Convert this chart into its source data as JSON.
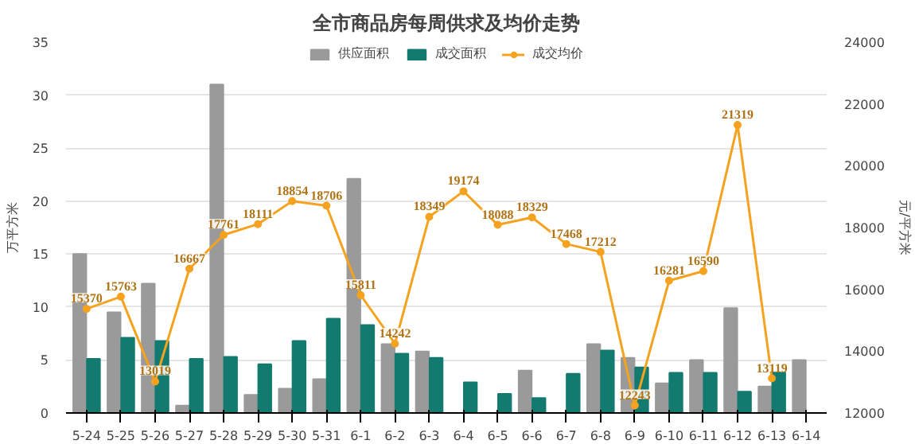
{
  "chart_data": {
    "type": "bar",
    "title": "全市商品房每周供求及均价走势",
    "ylabel": "万平方米",
    "y2label": "元/平方米",
    "categories": [
      "5-24",
      "5-25",
      "5-26",
      "5-27",
      "5-28",
      "5-29",
      "5-30",
      "5-31",
      "6-1",
      "6-2",
      "6-3",
      "6-4",
      "6-5",
      "6-6",
      "6-7",
      "6-8",
      "6-9",
      "6-10",
      "6-11",
      "6-12",
      "6-13",
      "6-14"
    ],
    "series": [
      {
        "name": "供应面积",
        "color": "#9a9a9a",
        "values": [
          15,
          9.5,
          12.2,
          0.7,
          31,
          1.7,
          2.3,
          3.2,
          22.1,
          6.5,
          5.8,
          0,
          0,
          4.0,
          0,
          6.5,
          5.2,
          2.8,
          5.0,
          9.9,
          2.5,
          5.0
        ]
      },
      {
        "name": "成交面积",
        "color": "#137a70",
        "values": [
          5.1,
          7.1,
          6.8,
          5.1,
          5.3,
          4.6,
          6.8,
          8.9,
          8.3,
          5.6,
          5.2,
          2.9,
          1.8,
          1.4,
          3.7,
          5.9,
          4.3,
          3.8,
          3.8,
          2.0,
          3.9,
          null
        ]
      },
      {
        "name": "成交均价",
        "type": "line",
        "axis": "y2",
        "color": "#f5a21f",
        "marker": "circle",
        "values": [
          15370,
          15763,
          13019,
          16667,
          17761,
          18111,
          18854,
          18706,
          15811,
          14242,
          18349,
          19174,
          18088,
          18329,
          17468,
          17212,
          12243,
          16281,
          16590,
          21319,
          13119,
          null
        ],
        "data_labels": true
      }
    ],
    "ylim": [
      0,
      35
    ],
    "yticks": [
      0,
      5,
      10,
      15,
      20,
      25,
      30,
      35
    ],
    "y2lim": [
      12000,
      24000
    ],
    "y2ticks": [
      12000,
      14000,
      16000,
      18000,
      20000,
      22000,
      24000
    ],
    "grid": "y",
    "legend": "top"
  }
}
